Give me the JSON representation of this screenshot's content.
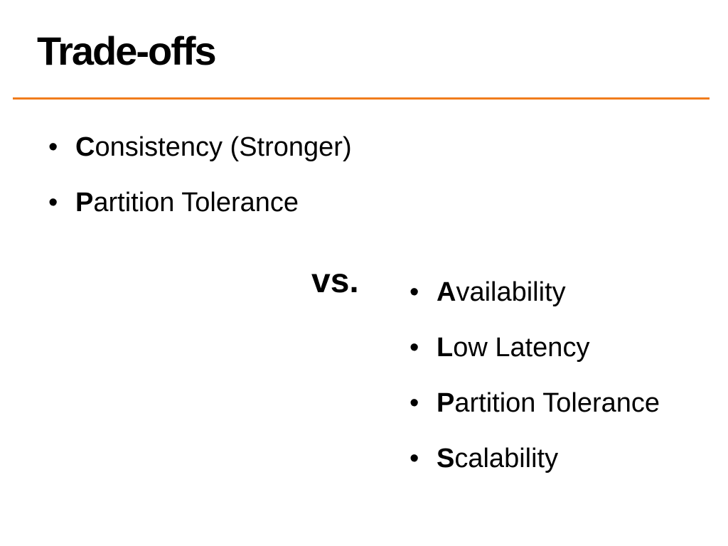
{
  "slide": {
    "title": "Trade-offs",
    "rule_color": "#F07C1C",
    "bullet_glyph": "•",
    "separator": "vs.",
    "left_list": [
      {
        "initial": "C",
        "rest": "onsistency (Stronger)"
      },
      {
        "initial": "P",
        "rest": "artition Tolerance"
      }
    ],
    "right_list": [
      {
        "initial": "A",
        "rest": "vailability"
      },
      {
        "initial": "L",
        "rest": "ow Latency"
      },
      {
        "initial": "P",
        "rest": "artition Tolerance"
      },
      {
        "initial": "S",
        "rest": "calability"
      }
    ]
  }
}
